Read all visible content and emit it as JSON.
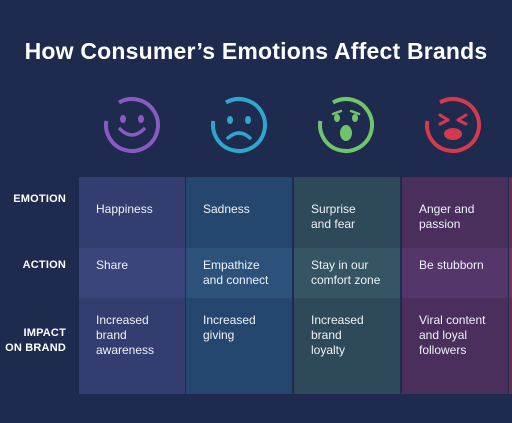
{
  "title": "How Consumer’s Emotions Affect Brands",
  "colors": {
    "background": "#1e2a4e",
    "happiness": "#8a5ac4",
    "sadness": "#2fa5cf",
    "surprise": "#70c56a",
    "anger": "#d43a4c"
  },
  "icons": [
    "smiling-face-icon",
    "sad-face-icon",
    "surprised-face-icon",
    "angry-face-icon"
  ],
  "row_labels": {
    "emotion": "EMOTION",
    "action": "ACTION",
    "impact_line1": "IMPACT",
    "impact_line2": "ON BRAND"
  },
  "columns": [
    {
      "emotion": [
        "Happiness"
      ],
      "action": [
        "Share"
      ],
      "impact": [
        "Increased",
        "brand",
        "awareness"
      ]
    },
    {
      "emotion": [
        "Sadness"
      ],
      "action": [
        "Empathize",
        "and connect"
      ],
      "impact": [
        "Increased",
        "giving"
      ]
    },
    {
      "emotion": [
        "Surprise",
        "and fear"
      ],
      "action": [
        "Stay in our",
        "comfort zone"
      ],
      "impact": [
        "Increased brand",
        "loyalty"
      ]
    },
    {
      "emotion": [
        "Anger and",
        "passion"
      ],
      "action": [
        "Be stubborn"
      ],
      "impact": [
        "Viral content",
        "and loyal",
        "followers"
      ]
    }
  ]
}
